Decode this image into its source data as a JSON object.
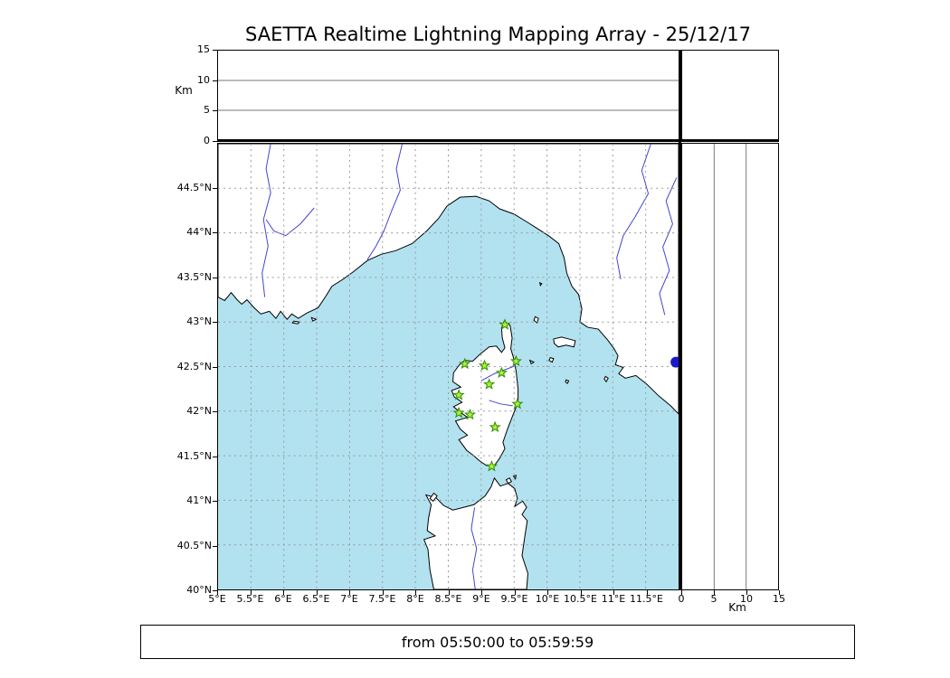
{
  "title": "SAETTA Realtime Lightning Mapping Array - 25/12/17",
  "time_range": "from 05:50:00 to 05:59:59",
  "axes": {
    "km_label": "Km",
    "lat_ticks": [
      {
        "value": 40,
        "label": "40°N"
      },
      {
        "value": 40.5,
        "label": "40.5°N"
      },
      {
        "value": 41,
        "label": "41°N"
      },
      {
        "value": 41.5,
        "label": "41.5°N"
      },
      {
        "value": 42,
        "label": "42°N"
      },
      {
        "value": 42.5,
        "label": "42.5°N"
      },
      {
        "value": 43,
        "label": "43°N"
      },
      {
        "value": 43.5,
        "label": "43.5°N"
      },
      {
        "value": 44,
        "label": "44°N"
      },
      {
        "value": 44.5,
        "label": "44.5°N"
      }
    ],
    "lon_ticks": [
      {
        "value": 5,
        "label": "5°E"
      },
      {
        "value": 5.5,
        "label": "5.5°E"
      },
      {
        "value": 6,
        "label": "6°E"
      },
      {
        "value": 6.5,
        "label": "6.5°E"
      },
      {
        "value": 7,
        "label": "7°E"
      },
      {
        "value": 7.5,
        "label": "7.5°E"
      },
      {
        "value": 8,
        "label": "8°E"
      },
      {
        "value": 8.5,
        "label": "8.5°E"
      },
      {
        "value": 9,
        "label": "9°E"
      },
      {
        "value": 9.5,
        "label": "9.5°E"
      },
      {
        "value": 10,
        "label": "10°E"
      },
      {
        "value": 10.5,
        "label": "10.5°E"
      },
      {
        "value": 11,
        "label": "11°E"
      },
      {
        "value": 11.5,
        "label": "11.5°E"
      }
    ],
    "km_ticks": [
      {
        "value": 0,
        "label": "0"
      },
      {
        "value": 5,
        "label": "5"
      },
      {
        "value": 10,
        "label": "10"
      },
      {
        "value": 15,
        "label": "15"
      }
    ]
  },
  "chart_data": {
    "type": "scatter",
    "title": "SAETTA Realtime Lightning Mapping Array - 25/12/17",
    "subtitle": "from 05:50:00 to 05:59:59",
    "layout": "plan-view map with altitude-vs-longitude top panel and altitude-vs-latitude right panel",
    "altitude_axis": {
      "range_km": [
        0,
        15
      ],
      "ticks": [
        0,
        5,
        10,
        15
      ],
      "gridlines": [
        5,
        10
      ],
      "label": "Km"
    },
    "map": {
      "lon_range": [
        5,
        12
      ],
      "lat_range": [
        40,
        45
      ],
      "grid_step": 0.5,
      "grid_on": true,
      "sea_color": "#b2e2ef",
      "land_color": "#ffffff",
      "coast_color": "#000000",
      "river_color": "#4444cc",
      "grid_color": "#999999",
      "land_polygons": [
        [
          [
            5.0,
            43.28
          ],
          [
            5.1,
            43.24
          ],
          [
            5.2,
            43.33
          ],
          [
            5.29,
            43.25
          ],
          [
            5.36,
            43.2
          ],
          [
            5.44,
            43.25
          ],
          [
            5.55,
            43.16
          ],
          [
            5.65,
            43.09
          ],
          [
            5.78,
            43.12
          ],
          [
            5.88,
            43.04
          ],
          [
            5.95,
            43.12
          ],
          [
            6.05,
            43.03
          ],
          [
            6.12,
            43.09
          ],
          [
            6.22,
            43.04
          ],
          [
            6.35,
            43.1
          ],
          [
            6.52,
            43.16
          ],
          [
            6.63,
            43.28
          ],
          [
            6.73,
            43.4
          ],
          [
            6.9,
            43.48
          ],
          [
            7.05,
            43.56
          ],
          [
            7.27,
            43.69
          ],
          [
            7.48,
            43.76
          ],
          [
            7.7,
            43.8
          ],
          [
            7.95,
            43.88
          ],
          [
            8.17,
            44.02
          ],
          [
            8.35,
            44.16
          ],
          [
            8.48,
            44.3
          ],
          [
            8.68,
            44.4
          ],
          [
            8.92,
            44.41
          ],
          [
            9.12,
            44.36
          ],
          [
            9.28,
            44.27
          ],
          [
            9.5,
            44.21
          ],
          [
            9.7,
            44.12
          ],
          [
            9.85,
            44.05
          ],
          [
            10.02,
            43.97
          ],
          [
            10.18,
            43.88
          ],
          [
            10.26,
            43.72
          ],
          [
            10.3,
            43.55
          ],
          [
            10.38,
            43.4
          ],
          [
            10.48,
            43.31
          ],
          [
            10.53,
            43.15
          ],
          [
            10.5,
            43.0
          ],
          [
            10.62,
            42.94
          ],
          [
            10.78,
            42.92
          ],
          [
            10.92,
            42.8
          ],
          [
            11.02,
            42.7
          ],
          [
            11.08,
            42.62
          ],
          [
            11.04,
            42.52
          ],
          [
            11.16,
            42.49
          ],
          [
            11.09,
            42.42
          ],
          [
            11.19,
            42.37
          ],
          [
            11.35,
            42.4
          ],
          [
            11.52,
            42.3
          ],
          [
            11.7,
            42.17
          ],
          [
            11.88,
            42.06
          ],
          [
            12.0,
            41.97
          ],
          [
            12.0,
            45.0
          ],
          [
            5.0,
            45.0
          ]
        ],
        [
          [
            9.35,
            43.01
          ],
          [
            9.44,
            42.96
          ],
          [
            9.47,
            42.82
          ],
          [
            9.45,
            42.7
          ],
          [
            9.49,
            42.6
          ],
          [
            9.53,
            42.45
          ],
          [
            9.56,
            42.25
          ],
          [
            9.56,
            42.1
          ],
          [
            9.48,
            41.95
          ],
          [
            9.4,
            41.8
          ],
          [
            9.33,
            41.65
          ],
          [
            9.36,
            41.58
          ],
          [
            9.28,
            41.47
          ],
          [
            9.19,
            41.38
          ],
          [
            9.08,
            41.39
          ],
          [
            8.98,
            41.44
          ],
          [
            8.87,
            41.51
          ],
          [
            8.78,
            41.56
          ],
          [
            8.66,
            41.68
          ],
          [
            8.79,
            41.73
          ],
          [
            8.68,
            41.8
          ],
          [
            8.61,
            41.89
          ],
          [
            8.79,
            41.93
          ],
          [
            8.66,
            42.0
          ],
          [
            8.58,
            42.05
          ],
          [
            8.71,
            42.1
          ],
          [
            8.59,
            42.16
          ],
          [
            8.55,
            42.23
          ],
          [
            8.69,
            42.27
          ],
          [
            8.57,
            42.33
          ],
          [
            8.58,
            42.43
          ],
          [
            8.67,
            42.52
          ],
          [
            8.75,
            42.57
          ],
          [
            8.87,
            42.56
          ],
          [
            8.97,
            42.63
          ],
          [
            9.12,
            42.72
          ],
          [
            9.23,
            42.73
          ],
          [
            9.31,
            42.66
          ],
          [
            9.36,
            42.71
          ],
          [
            9.32,
            42.82
          ],
          [
            9.31,
            42.93
          ]
        ],
        [
          [
            8.28,
            40.0
          ],
          [
            8.22,
            40.22
          ],
          [
            8.19,
            40.45
          ],
          [
            8.13,
            40.56
          ],
          [
            8.3,
            40.6
          ],
          [
            8.18,
            40.66
          ],
          [
            8.2,
            40.8
          ],
          [
            8.24,
            40.95
          ],
          [
            8.16,
            41.06
          ],
          [
            8.31,
            41.03
          ],
          [
            8.43,
            40.94
          ],
          [
            8.57,
            40.89
          ],
          [
            8.73,
            40.92
          ],
          [
            8.89,
            40.95
          ],
          [
            9.06,
            41.05
          ],
          [
            9.15,
            41.15
          ],
          [
            9.2,
            41.25
          ],
          [
            9.29,
            41.16
          ],
          [
            9.41,
            41.19
          ],
          [
            9.51,
            41.13
          ],
          [
            9.55,
            41.02
          ],
          [
            9.51,
            40.93
          ],
          [
            9.63,
            40.99
          ],
          [
            9.69,
            40.92
          ],
          [
            9.62,
            40.84
          ],
          [
            9.7,
            40.77
          ],
          [
            9.66,
            40.58
          ],
          [
            9.62,
            40.38
          ],
          [
            9.71,
            40.18
          ],
          [
            9.69,
            40.0
          ]
        ]
      ],
      "islands": [
        [
          [
            10.1,
            42.81
          ],
          [
            10.22,
            42.83
          ],
          [
            10.33,
            42.81
          ],
          [
            10.43,
            42.79
          ],
          [
            10.41,
            42.72
          ],
          [
            10.29,
            42.74
          ],
          [
            10.17,
            42.72
          ],
          [
            10.11,
            42.76
          ]
        ],
        [
          [
            9.82,
            43.06
          ],
          [
            9.87,
            43.04
          ],
          [
            9.85,
            42.99
          ],
          [
            9.8,
            43.02
          ]
        ],
        [
          [
            9.89,
            43.44
          ],
          [
            9.92,
            43.43
          ],
          [
            9.9,
            43.41
          ]
        ],
        [
          [
            10.05,
            42.6
          ],
          [
            10.1,
            42.59
          ],
          [
            10.08,
            42.55
          ],
          [
            10.03,
            42.57
          ]
        ],
        [
          [
            10.29,
            42.35
          ],
          [
            10.33,
            42.34
          ],
          [
            10.31,
            42.31
          ],
          [
            10.28,
            42.33
          ]
        ],
        [
          [
            10.89,
            42.39
          ],
          [
            10.93,
            42.37
          ],
          [
            10.9,
            42.33
          ],
          [
            10.87,
            42.36
          ]
        ],
        [
          [
            6.15,
            43.01
          ],
          [
            6.24,
            43.0
          ],
          [
            6.21,
            42.98
          ],
          [
            6.13,
            42.99
          ]
        ],
        [
          [
            6.42,
            43.05
          ],
          [
            6.49,
            43.03
          ],
          [
            6.44,
            43.01
          ]
        ],
        [
          [
            8.22,
            41.02
          ],
          [
            8.28,
            41.08
          ],
          [
            8.33,
            41.05
          ],
          [
            8.27,
            40.99
          ]
        ],
        [
          [
            9.38,
            41.23
          ],
          [
            9.43,
            41.25
          ],
          [
            9.46,
            41.21
          ],
          [
            9.41,
            41.19
          ]
        ],
        [
          [
            9.49,
            41.27
          ],
          [
            9.53,
            41.28
          ],
          [
            9.52,
            41.24
          ]
        ],
        [
          [
            9.74,
            42.57
          ],
          [
            9.8,
            42.55
          ],
          [
            9.76,
            42.53
          ]
        ]
      ],
      "rivers": [
        [
          [
            5.8,
            45.0
          ],
          [
            5.73,
            44.72
          ],
          [
            5.8,
            44.45
          ],
          [
            5.69,
            44.15
          ],
          [
            5.76,
            43.85
          ],
          [
            5.67,
            43.55
          ],
          [
            5.71,
            43.28
          ]
        ],
        [
          [
            6.46,
            44.28
          ],
          [
            6.25,
            44.1
          ],
          [
            6.03,
            43.97
          ],
          [
            5.85,
            44.02
          ],
          [
            5.73,
            44.15
          ]
        ],
        [
          [
            7.8,
            45.0
          ],
          [
            7.71,
            44.72
          ],
          [
            7.77,
            44.48
          ],
          [
            7.64,
            44.25
          ],
          [
            7.52,
            44.02
          ],
          [
            7.4,
            43.85
          ],
          [
            7.27,
            43.7
          ]
        ],
        [
          [
            11.58,
            45.0
          ],
          [
            11.44,
            44.7
          ],
          [
            11.54,
            44.44
          ],
          [
            11.34,
            44.18
          ],
          [
            11.16,
            43.97
          ],
          [
            11.06,
            43.72
          ],
          [
            11.12,
            43.48
          ]
        ],
        [
          [
            11.97,
            44.62
          ],
          [
            11.81,
            44.36
          ],
          [
            11.91,
            44.1
          ],
          [
            11.76,
            43.84
          ],
          [
            11.86,
            43.58
          ],
          [
            11.71,
            43.32
          ],
          [
            11.79,
            43.08
          ]
        ],
        [
          [
            9.0,
            42.34
          ],
          [
            9.2,
            42.42
          ],
          [
            9.38,
            42.47
          ],
          [
            9.52,
            42.51
          ]
        ],
        [
          [
            9.12,
            42.12
          ],
          [
            9.3,
            42.08
          ],
          [
            9.48,
            42.06
          ]
        ],
        [
          [
            8.9,
            40.92
          ],
          [
            8.85,
            40.68
          ],
          [
            8.93,
            40.46
          ],
          [
            8.87,
            40.22
          ],
          [
            8.91,
            40.0
          ]
        ]
      ]
    },
    "stations": {
      "marker": "star",
      "fill": "#aaf23c",
      "edge": "#2e8b00",
      "points": [
        [
          9.36,
          42.97
        ],
        [
          8.75,
          42.53
        ],
        [
          9.05,
          42.51
        ],
        [
          9.53,
          42.56
        ],
        [
          9.31,
          42.43
        ],
        [
          9.12,
          42.3
        ],
        [
          8.66,
          42.18
        ],
        [
          9.55,
          42.08
        ],
        [
          8.66,
          41.98
        ],
        [
          8.83,
          41.96
        ],
        [
          9.21,
          41.82
        ],
        [
          9.16,
          41.38
        ]
      ]
    },
    "events": [
      {
        "lon": 11.96,
        "lat": 42.55,
        "color": "#1a1acd",
        "radius_px": 6
      }
    ]
  }
}
